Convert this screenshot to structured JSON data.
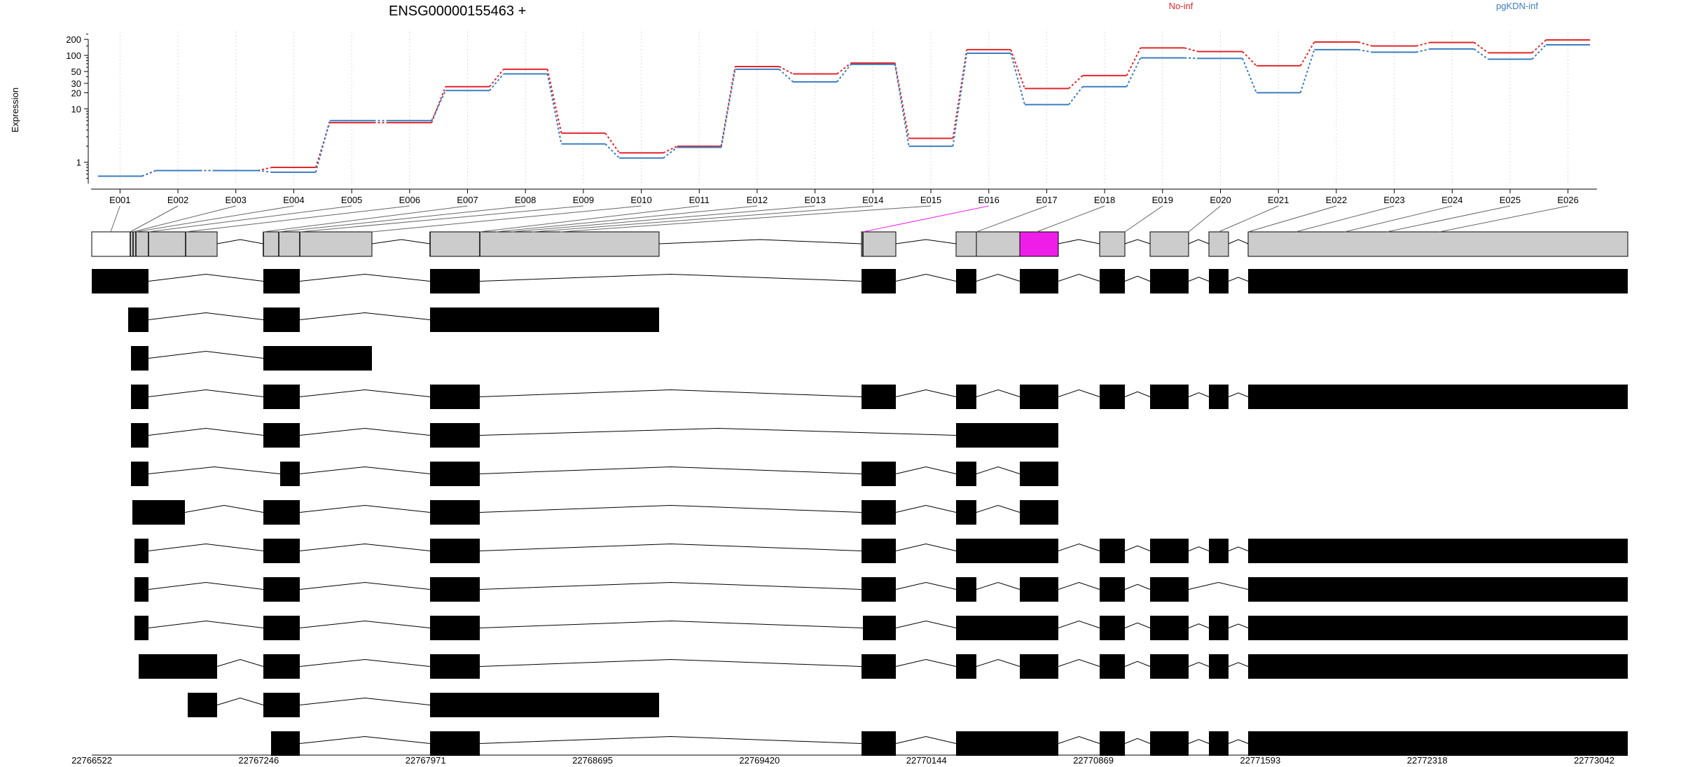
{
  "chart_data": {
    "type": "line",
    "title": "ENSG00000155463 +",
    "ylabel": "Expression",
    "y_scale": "log",
    "ylim": [
      0.4,
      280
    ],
    "y_ticks": [
      1,
      10,
      20,
      30,
      50,
      100,
      200
    ],
    "y_tick_labels": [
      "1",
      "10",
      "20",
      "30",
      "50",
      "100",
      "200"
    ],
    "categories": [
      "E001",
      "E002",
      "E003",
      "E004",
      "E005",
      "E006",
      "E007",
      "E008",
      "E009",
      "E010",
      "E011",
      "E012",
      "E013",
      "E014",
      "E015",
      "E016",
      "E017",
      "E018",
      "E019",
      "E020",
      "E021",
      "E022",
      "E023",
      "E024",
      "E025",
      "E026"
    ],
    "series": [
      {
        "name": "No-inf",
        "color": "#e3262b",
        "values": [
          0.55,
          0.7,
          0.7,
          0.8,
          5.5,
          5.5,
          26,
          55,
          3.5,
          1.5,
          2.0,
          62,
          45,
          72,
          2.8,
          128,
          24,
          42,
          138,
          118,
          64,
          178,
          150,
          175,
          112,
          195
        ]
      },
      {
        "name": "pgKDN-inf",
        "color": "#3a7dc0",
        "values": [
          0.55,
          0.7,
          0.7,
          0.65,
          6.0,
          6.0,
          22,
          45,
          2.2,
          1.2,
          1.9,
          55,
          32,
          68,
          2.0,
          110,
          12,
          26,
          90,
          88,
          20,
          128,
          115,
          132,
          85,
          158
        ]
      }
    ],
    "gene_model": {
      "x_ticks": [
        "22766522",
        "22767246",
        "22767971",
        "22768695",
        "22769420",
        "22770144",
        "22770869",
        "22771593",
        "22772318",
        "22773042"
      ],
      "highlight_exon": "E016",
      "highlight_color": "#ee1ee8",
      "exon_fill": "#cccccc",
      "transcript_count": 13
    }
  }
}
